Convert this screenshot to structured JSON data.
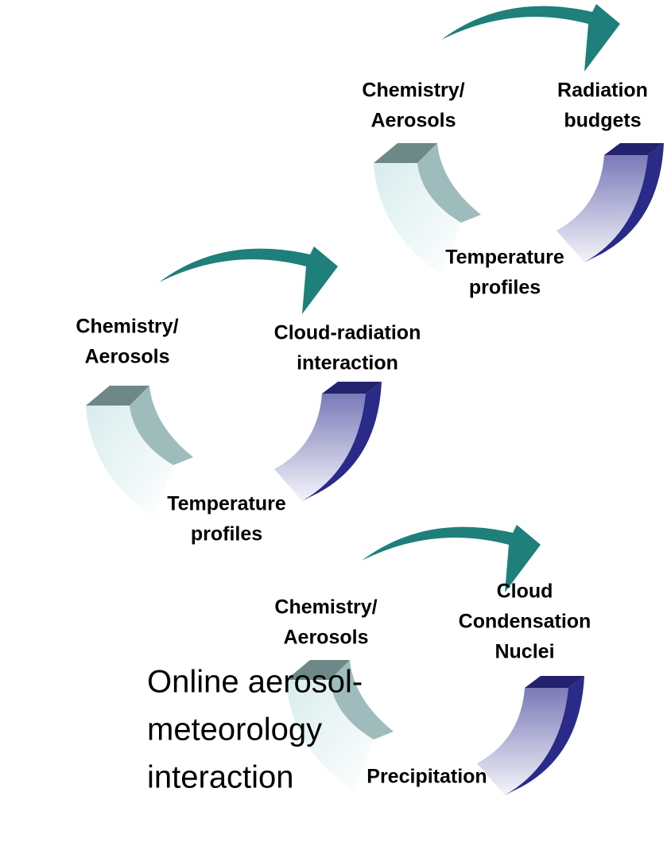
{
  "cycles": [
    {
      "top_left": [
        "Chemistry/",
        "Aerosols"
      ],
      "top_right": [
        "Radiation",
        "budgets"
      ],
      "bottom": [
        "Temperature",
        "profiles"
      ]
    },
    {
      "top_left": [
        "Chemistry/",
        "Aerosols"
      ],
      "top_right": [
        "Cloud-radiation",
        "interaction"
      ],
      "bottom": [
        "Temperature",
        "profiles"
      ]
    },
    {
      "top_left": [
        "Chemistry/",
        "Aerosols"
      ],
      "top_right": [
        "Cloud",
        "Condensation",
        "Nuclei"
      ],
      "bottom": [
        "Precipitation"
      ]
    }
  ],
  "caption": [
    "Online aerosol-",
    "meteorology",
    "interaction"
  ]
}
